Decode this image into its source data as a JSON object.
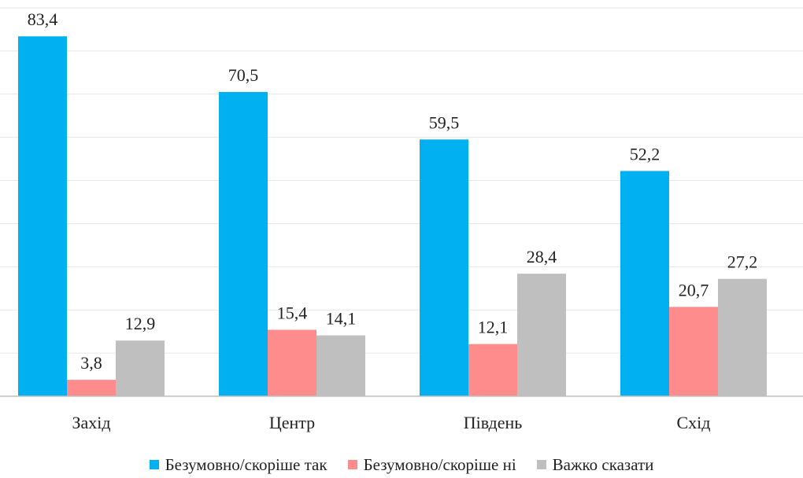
{
  "chart_data": {
    "type": "bar",
    "categories": [
      "Захід",
      "Центр",
      "Південь",
      "Схід"
    ],
    "series": [
      {
        "name": "Безумовно/скоріше так",
        "color": "#00B0F0",
        "values": [
          83.4,
          70.5,
          59.5,
          52.2
        ],
        "labels": [
          "83,4",
          "70,5",
          "59,5",
          "52,2"
        ]
      },
      {
        "name": "Безумовно/скоріше ні",
        "color": "#FF8C8C",
        "values": [
          3.8,
          15.4,
          12.1,
          20.7
        ],
        "labels": [
          "3,8",
          "15,4",
          "12,1",
          "20,7"
        ]
      },
      {
        "name": "Важко сказати",
        "color": "#BFBFBF",
        "values": [
          12.9,
          14.1,
          28.4,
          27.2
        ],
        "labels": [
          "12,9",
          "14,1",
          "28,4",
          "27,2"
        ]
      }
    ],
    "ylim": [
      0,
      90
    ],
    "grid": true,
    "legend_position": "bottom"
  }
}
